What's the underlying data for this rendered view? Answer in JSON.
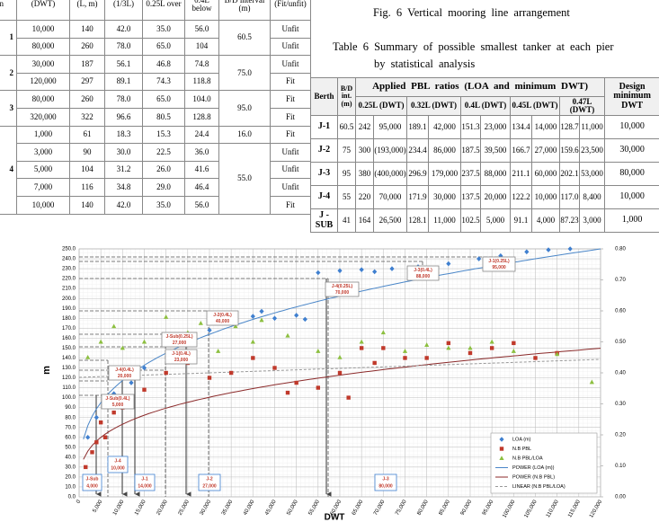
{
  "left_table": {
    "header": [
      "nn",
      "(DWT)",
      "(L, m)",
      "(1/3L)",
      "0.25L over",
      "0.4L below",
      "B/D interval (m)",
      "(Fit/unfit)"
    ],
    "groups": [
      {
        "pier": "1",
        "blocks": [
          {
            "interval": "60.5",
            "rows": [
              [
                "10,000",
                "140",
                "42.0",
                "35.0",
                "56.0",
                "Unfit"
              ],
              [
                "80,000",
                "260",
                "78.0",
                "65.0",
                "104",
                "Unfit"
              ]
            ]
          }
        ]
      },
      {
        "pier": "2",
        "blocks": [
          {
            "interval": "75.0",
            "rows": [
              [
                "30,000",
                "187",
                "56.1",
                "46.8",
                "74.8",
                "Unfit"
              ],
              [
                "120,000",
                "297",
                "89.1",
                "74.3",
                "118.8",
                "Fit"
              ]
            ]
          }
        ]
      },
      {
        "pier": "3",
        "blocks": [
          {
            "interval": "95.0",
            "rows": [
              [
                "80,000",
                "260",
                "78.0",
                "65.0",
                "104.0",
                "Fit"
              ],
              [
                "320,000",
                "322",
                "96.6",
                "80.5",
                "128.8",
                "Fit"
              ]
            ]
          }
        ]
      },
      {
        "pier": "4",
        "blocks": [
          {
            "interval": "16.0",
            "rows": [
              [
                "1,000",
                "61",
                "18.3",
                "15.3",
                "24.4",
                "Fit"
              ]
            ]
          },
          {
            "interval": "55.0",
            "rows": [
              [
                "3,000",
                "90",
                "30.0",
                "22.5",
                "36.0",
                "Unfit"
              ],
              [
                "5,000",
                "104",
                "31.2",
                "26.0",
                "41.6",
                "Unfit"
              ],
              [
                "7,000",
                "116",
                "34.8",
                "29.0",
                "46.4",
                "Unfit"
              ],
              [
                "10,000",
                "140",
                "42.0",
                "35.0",
                "56.0",
                "Fit"
              ]
            ]
          }
        ]
      }
    ]
  },
  "figure_caption": "Fig. 6 Vertical mooring line arrangement",
  "table_caption": [
    "Table 6 Summary of possible smallest tanker at each pier",
    "by statistical analysis"
  ],
  "right_table": {
    "header_top": [
      "Berth",
      "B/D int. (m)",
      "Applied PBL ratios (LOA and minimum DWT)",
      "Design minimum DWT"
    ],
    "header_sub": [
      "0.25L (DWT)",
      "0.32L (DWT)",
      "0.4L (DWT)",
      "0.45L (DWT)",
      "0.47L (DWT)"
    ],
    "rows": [
      [
        "J-1",
        "60.5",
        "242",
        "95,000",
        "189.1",
        "42,000",
        "151.3",
        "23,000",
        "134.4",
        "14,000",
        "128.7",
        "11,000",
        "10,000"
      ],
      [
        "J-2",
        "75",
        "300",
        "(193,000)",
        "234.4",
        "86,000",
        "187.5",
        "39,500",
        "166.7",
        "27,000",
        "159.6",
        "23,500",
        "30,000"
      ],
      [
        "J-3",
        "95",
        "380",
        "(400,000)",
        "296.9",
        "179,000",
        "237.5",
        "88,000",
        "211.1",
        "60,000",
        "202.1",
        "53,000",
        "80,000"
      ],
      [
        "J-4",
        "55",
        "220",
        "70,000",
        "171.9",
        "30,000",
        "137.5",
        "20,000",
        "122.2",
        "10,000",
        "117.0",
        "8,400",
        "10,000"
      ],
      [
        "J - SUB",
        "41",
        "164",
        "26,500",
        "128.1",
        "11,000",
        "102.5",
        "5,000",
        "91.1",
        "4,000",
        "87.23",
        "3,000",
        "1,000"
      ]
    ]
  },
  "chart_data": {
    "type": "scatter",
    "y_label": "m",
    "x_label": "DWT",
    "grid": true,
    "legend": "lower right",
    "xlim": [
      0,
      120000
    ],
    "ylim": [
      0,
      250
    ],
    "y2lim": [
      0,
      0.8
    ],
    "xticks": [
      0,
      {
        "value": 5000,
        "label": "5,000"
      },
      {
        "value": 10000,
        "label": "10,000"
      },
      {
        "value": 15000,
        "label": "15,000"
      },
      {
        "value": 20000,
        "label": "20,000"
      },
      {
        "value": 25000,
        "label": "25,000"
      },
      {
        "value": 30000,
        "label": "30,000"
      },
      {
        "value": 35000,
        "label": "35,000"
      },
      {
        "value": 40000,
        "label": "40,000"
      },
      {
        "value": 45000,
        "label": "45,000"
      },
      {
        "value": 50000,
        "label": "50,000"
      },
      {
        "value": 55000,
        "label": "55,000"
      },
      {
        "value": 60000,
        "label": "60,000"
      },
      {
        "value": 65000,
        "label": "65,000"
      },
      {
        "value": 70000,
        "label": "70,000"
      },
      {
        "value": 75000,
        "label": "75,000"
      },
      {
        "value": 80000,
        "label": "80,000"
      },
      {
        "value": 85000,
        "label": "85,000"
      },
      {
        "value": 90000,
        "label": "90,000"
      },
      {
        "value": 95000,
        "label": "95,000"
      },
      {
        "value": 100000,
        "label": "100,000"
      },
      {
        "value": 105000,
        "label": "105,000"
      },
      {
        "value": 110000,
        "label": "110,000"
      },
      {
        "value": 115000,
        "label": "115,000"
      },
      {
        "value": 120000,
        "label": "120,000"
      }
    ],
    "yticks": [
      {
        "value": 0,
        "label": "0.0"
      },
      {
        "value": 10,
        "label": "10.0"
      },
      {
        "value": 20,
        "label": "20.0"
      },
      {
        "value": 30,
        "label": "30.0"
      },
      {
        "value": 40,
        "label": "40.0"
      },
      {
        "value": 50,
        "label": "50.0"
      },
      {
        "value": 60,
        "label": "60.0"
      },
      {
        "value": 70,
        "label": "70.0"
      },
      {
        "value": 80,
        "label": "80.0"
      },
      {
        "value": 90,
        "label": "90.0"
      },
      {
        "value": 100,
        "label": "100.0"
      },
      {
        "value": 110,
        "label": "110.0"
      },
      {
        "value": 120,
        "label": "120.0"
      },
      {
        "value": 130,
        "label": "130.0"
      },
      {
        "value": 140,
        "label": "140.0"
      },
      {
        "value": 150,
        "label": "150.0"
      },
      {
        "value": 160,
        "label": "160.0"
      },
      {
        "value": 170,
        "label": "170.0"
      },
      {
        "value": 180,
        "label": "180.0"
      },
      {
        "value": 190,
        "label": "190.0"
      },
      {
        "value": 200,
        "label": "200.0"
      },
      {
        "value": 210,
        "label": "210.0"
      },
      {
        "value": 220,
        "label": "220.0"
      },
      {
        "value": 230,
        "label": "230.0"
      },
      {
        "value": 240,
        "label": "240.0"
      },
      {
        "value": 250,
        "label": "250.0"
      }
    ],
    "y2ticks": [
      {
        "value": 0,
        "label": "0.00"
      },
      {
        "value": 0.1,
        "label": "0.10"
      },
      {
        "value": 0.2,
        "label": "0.20"
      },
      {
        "value": 0.3,
        "label": "0.30"
      },
      {
        "value": 0.4,
        "label": "0.40"
      },
      {
        "value": 0.5,
        "label": "0.50"
      },
      {
        "value": 0.6,
        "label": "0.60"
      },
      {
        "value": 0.7,
        "label": "0.70"
      },
      {
        "value": 0.8,
        "label": "0.80"
      }
    ],
    "series": [
      {
        "name": "LOA (m)",
        "color": "#3f7fcf",
        "marker": "diamond",
        "x": [
          2000,
          4000,
          6000,
          8000,
          12000,
          15000,
          25000,
          30000,
          40000,
          42000,
          45000,
          50000,
          52000,
          55000,
          60000,
          65000,
          68000,
          72000,
          78000,
          85000,
          92000,
          97000,
          103000,
          108000,
          113000
        ],
        "values": [
          60,
          80,
          95,
          104,
          115,
          130,
          160,
          168,
          182,
          187,
          180,
          183,
          179,
          226,
          228,
          229,
          227,
          230,
          232,
          235,
          240,
          243,
          247,
          249,
          250
        ]
      },
      {
        "name": "N.B PBL",
        "color": "#c0392b",
        "marker": "square",
        "x": [
          1500,
          3000,
          4000,
          5000,
          6000,
          8000,
          10000,
          12000,
          15000,
          20000,
          25000,
          30000,
          35000,
          40000,
          45000,
          48000,
          50000,
          55000,
          60000,
          62000,
          65000,
          68000,
          70000,
          75000,
          80000,
          85000,
          90000,
          95000,
          100000,
          105000,
          110000,
          115000
        ],
        "values": [
          30,
          45,
          55,
          75,
          60,
          85,
          90,
          100,
          108,
          125,
          135,
          120,
          125,
          140,
          130,
          105,
          115,
          110,
          125,
          100,
          150,
          135,
          150,
          140,
          140,
          155,
          145,
          150,
          155,
          140,
          145,
          60
        ]
      },
      {
        "name": "N.B PBL/LOA",
        "color": "#8cbf3f",
        "marker": "triangle",
        "axis": "y2",
        "x": [
          2000,
          5000,
          8000,
          10000,
          15000,
          20000,
          25000,
          28000,
          32000,
          36000,
          40000,
          42000,
          48000,
          55000,
          60000,
          65000,
          70000,
          75000,
          80000,
          85000,
          90000,
          95000,
          100000,
          110000,
          118000
        ],
        "values": [
          0.45,
          0.5,
          0.55,
          0.48,
          0.5,
          0.58,
          0.53,
          0.56,
          0.47,
          0.55,
          0.5,
          0.57,
          0.52,
          0.47,
          0.45,
          0.5,
          0.53,
          0.47,
          0.49,
          0.48,
          0.48,
          0.5,
          0.47,
          0.46,
          0.37
        ]
      }
    ],
    "trend_lines": [
      {
        "name": "POWER (LOA (m))",
        "color": "#4a86c8"
      },
      {
        "name": "POWER (N.B PBL)",
        "color": "#8b2a2a"
      },
      {
        "name": "LINEAR (N.B PBL/LOA)",
        "color": "#999999"
      }
    ],
    "annotations": [
      {
        "label": "J-Sub(0.4L)",
        "dwt": "5,000"
      },
      {
        "label": "J-4(0.4L)",
        "dwt": "20,000"
      },
      {
        "label": "J-1(0.4L)",
        "dwt": "23,000"
      },
      {
        "label": "J-Sub(0.25L)",
        "dwt": "27,000"
      },
      {
        "label": "J-2(0.4L)",
        "dwt": "40,000"
      },
      {
        "label": "J-4(0.25L)",
        "dwt": "70,000"
      },
      {
        "label": "J-3(0.4L)",
        "dwt": "88,000"
      },
      {
        "label": "J-1(0.25L)",
        "dwt": "95,000"
      },
      {
        "label": "J-Sub",
        "dwt": "4,000"
      },
      {
        "label": "J-4",
        "dwt": "10,000"
      },
      {
        "label": "J-1",
        "dwt": "14,000"
      },
      {
        "label": "J-2",
        "dwt": "27,000"
      },
      {
        "label": "J-3",
        "dwt": "80,000"
      }
    ]
  }
}
